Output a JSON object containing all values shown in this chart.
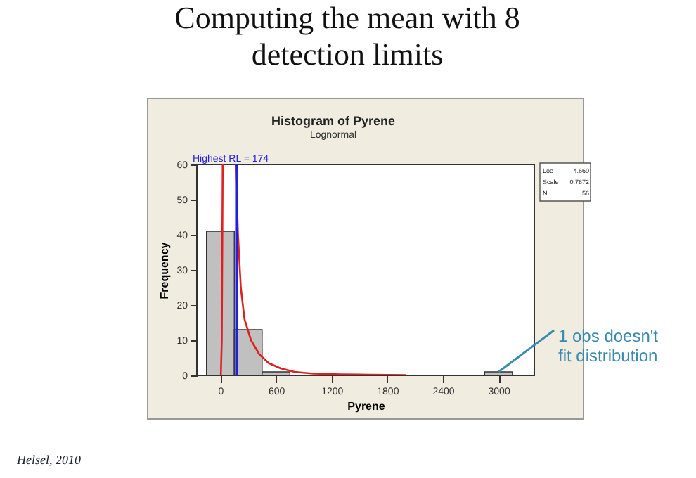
{
  "chart_data": {
    "type": "histogram",
    "title": "Histogram of Pyrene",
    "subtitle": "Lognormal",
    "xlabel": "Pyrene",
    "ylabel": "Frequency",
    "bins": [
      -150,
      150,
      450,
      750,
      1050,
      1350,
      1650,
      1950,
      2250,
      2550,
      2850,
      3150
    ],
    "values": [
      41,
      13,
      1,
      0,
      0,
      0,
      0,
      0,
      0,
      0,
      1
    ],
    "color": "#c0c0c0",
    "series": [
      {
        "type": "line",
        "color": "#e02020",
        "x": [
          5,
          15,
          25,
          100,
          165,
          190,
          220,
          260,
          330,
          420,
          520,
          650,
          800,
          1000,
          1300,
          1600,
          2000
        ],
        "values": [
          0,
          10,
          60,
          null,
          60,
          40,
          25,
          16,
          10,
          6,
          3.5,
          2,
          1,
          0.5,
          0.3,
          0.2,
          0.1
        ]
      }
    ],
    "ref_lines": [
      {
        "axis": "x",
        "value": 174,
        "label": "Highest RL = 174",
        "color": "#2020e0"
      }
    ],
    "xlim": [
      -254,
      3386
    ],
    "xticks": [
      0,
      600,
      1200,
      1800,
      2400,
      3000
    ],
    "ylim": [
      0,
      60
    ],
    "yticks": [
      0,
      10,
      20,
      30,
      40,
      50,
      60
    ],
    "grid": false,
    "annotations": [
      "Computing the mean with 8\ndetection limits",
      "Loc 4.660",
      "Scale 0.7872",
      "N 56",
      {
        "text": "1 obs doesn't\nfit distribution",
        "x": 3000,
        "y": 1
      },
      "Helsel, 2010"
    ]
  }
}
